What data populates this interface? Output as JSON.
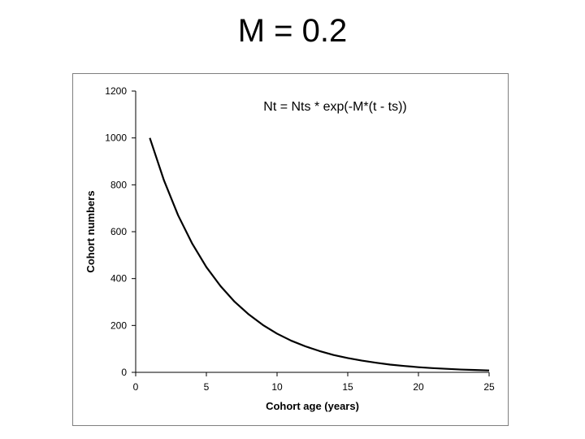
{
  "slide": {
    "title": "M = 0.2"
  },
  "chart_data": {
    "type": "line",
    "title": "",
    "annotation": "Nt = Nts * exp(-M*(t - ts))",
    "xlabel": "Cohort age (years)",
    "ylabel": "Cohort numbers",
    "xlim": [
      0,
      25
    ],
    "ylim": [
      0,
      1200
    ],
    "xticks": [
      0,
      5,
      10,
      15,
      20,
      25
    ],
    "yticks": [
      0,
      200,
      400,
      600,
      800,
      1000,
      1200
    ],
    "grid": false,
    "legend": "none",
    "series": [
      {
        "color": "#000000",
        "x": [
          1,
          2,
          3,
          4,
          5,
          6,
          7,
          8,
          9,
          10,
          11,
          12,
          13,
          14,
          15,
          16,
          17,
          18,
          19,
          20,
          21,
          22,
          23,
          24,
          25
        ],
        "y": [
          1000,
          819,
          670,
          549,
          449,
          368,
          301,
          247,
          202,
          165,
          135,
          111,
          91,
          74,
          61,
          50,
          41,
          33,
          27,
          22,
          18,
          15,
          12,
          10,
          8
        ]
      }
    ]
  }
}
